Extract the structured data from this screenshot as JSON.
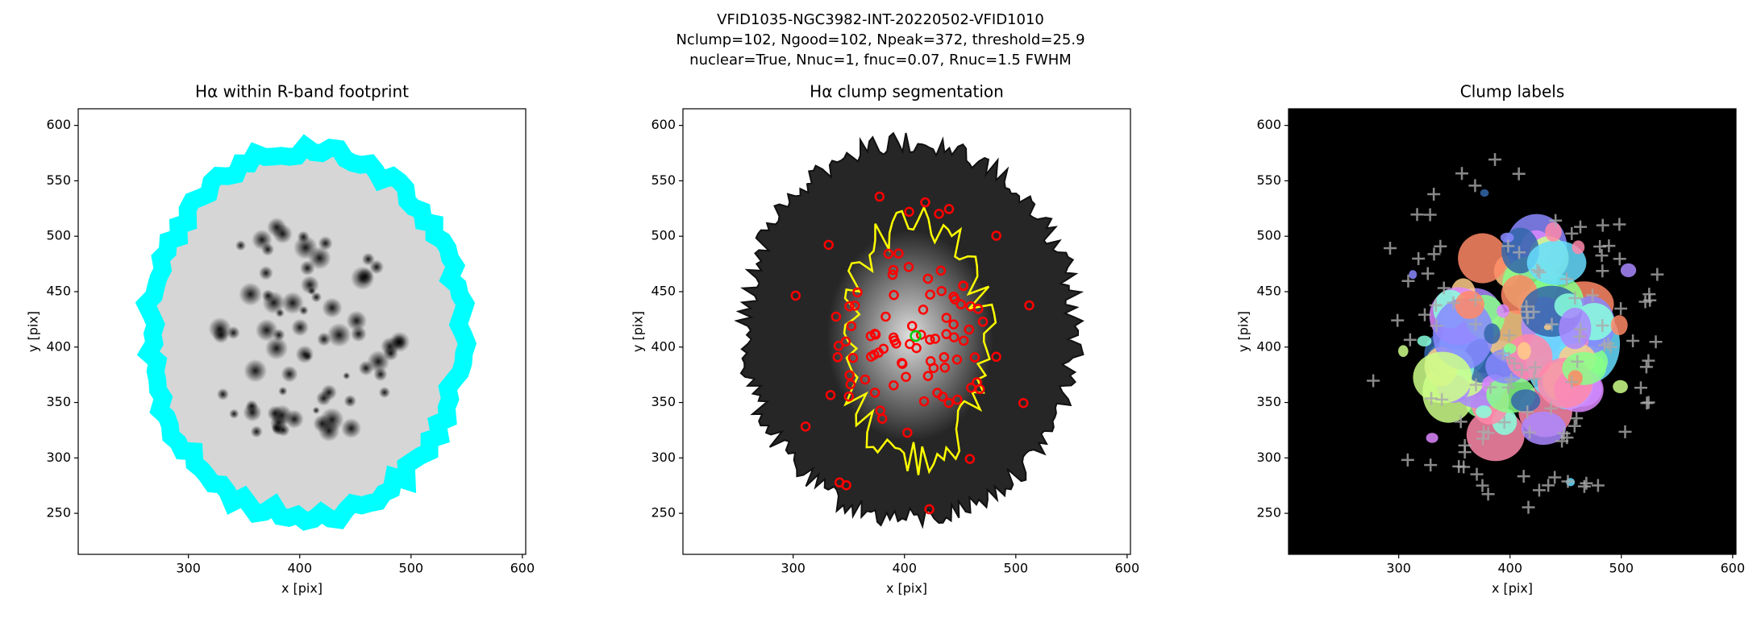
{
  "suptitle": [
    "VFID1035-NGC3982-INT-20220502-VFID1010",
    "Nclump=102, Ngood=102, Npeak=372, threshold=25.9",
    "nuclear=True, Nnuc=1, fnuc=0.07, Rnuc=1.5 FWHM"
  ],
  "chart_data": [
    {
      "type": "image",
      "title": "Hα within R-band footprint",
      "xlabel": "x [pix]",
      "ylabel": "y [pix]",
      "xlim": [
        201,
        603
      ],
      "ylim": [
        213,
        615
      ],
      "xticks": [
        300,
        400,
        500,
        600
      ],
      "yticks": [
        250,
        300,
        350,
        400,
        450,
        500,
        550,
        600
      ]
    },
    {
      "type": "image",
      "title": "Hα clump segmentation",
      "xlabel": "x [pix]",
      "ylabel": "y [pix]",
      "xlim": [
        201,
        603
      ],
      "ylim": [
        213,
        615
      ],
      "xticks": [
        300,
        400,
        500,
        600
      ],
      "yticks": [
        250,
        300,
        350,
        400,
        450,
        500,
        550,
        600
      ]
    },
    {
      "type": "image",
      "title": "Clump labels",
      "xlabel": "x [pix]",
      "ylabel": "y [pix]",
      "xlim": [
        201,
        603
      ],
      "ylim": [
        213,
        615
      ],
      "xticks": [
        300,
        400,
        500,
        600
      ],
      "yticks": [
        250,
        300,
        350,
        400,
        450,
        500,
        550,
        600
      ]
    }
  ]
}
